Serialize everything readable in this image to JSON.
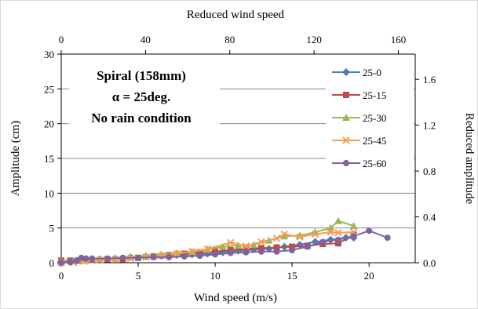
{
  "chart_data": {
    "type": "line",
    "xlabel": "Wind speed (m/s)",
    "ylabel": "Amplitude (cm)",
    "x2label": "Reduced wind speed",
    "y2label": "Reduced amplitude",
    "xlim": [
      0,
      23
    ],
    "ylim": [
      0,
      30
    ],
    "x2lim": [
      0,
      168
    ],
    "y2lim": [
      0,
      1.82
    ],
    "xticks": [
      "0",
      "5",
      "10",
      "15",
      "20"
    ],
    "yticks": [
      "0",
      "5",
      "10",
      "15",
      "20",
      "25",
      "30"
    ],
    "x2ticks": [
      "0",
      "40",
      "80",
      "120",
      "160"
    ],
    "y2ticks": [
      "0.0",
      "0.4",
      "0.8",
      "1.2",
      "1.6"
    ],
    "annotations": [
      "Spiral (158mm)",
      "α = 25deg.",
      "No rain condition"
    ],
    "grid": "horizontal",
    "legend": "right",
    "series": [
      {
        "name": "25-0",
        "color": "#4a7ebb",
        "marker": "diamond",
        "x": [
          0,
          0.5,
          1.0,
          1.5,
          2.5,
          3.5,
          4.5,
          5.5,
          6.5,
          7.5,
          8.5,
          9.5,
          10.5,
          11.5,
          12.5,
          13.5,
          14.5,
          15.5,
          16.5,
          17.5,
          18.5,
          19.0
        ],
        "y": [
          0.2,
          0.2,
          0.3,
          0.4,
          0.5,
          0.6,
          0.8,
          0.9,
          1.0,
          1.1,
          1.2,
          1.3,
          1.5,
          1.7,
          1.9,
          2.0,
          2.3,
          2.6,
          3.0,
          3.3,
          3.6,
          3.6
        ]
      },
      {
        "name": "25-15",
        "color": "#be4b48",
        "marker": "square",
        "x": [
          0,
          0.6,
          1.2,
          2.0,
          3.0,
          4.0,
          5.0,
          6.0,
          7.0,
          8.0,
          9.0,
          10.0,
          11.0,
          12.0,
          13.0,
          14.0,
          15.0,
          16.0,
          17.0,
          18.0,
          19.0
        ],
        "y": [
          0.3,
          0.3,
          0.3,
          0.4,
          0.5,
          0.5,
          0.7,
          0.9,
          1.1,
          1.3,
          1.5,
          1.6,
          1.8,
          2.0,
          2.1,
          2.2,
          2.3,
          2.4,
          2.7,
          2.8,
          4.0
        ]
      },
      {
        "name": "25-30",
        "color": "#98b954",
        "marker": "triangle",
        "x": [
          0,
          0.8,
          1.5,
          2.5,
          3.5,
          4.5,
          5.5,
          6.5,
          7.5,
          8.5,
          9.5,
          10.5,
          11.5,
          12.5,
          13.5,
          14.5,
          15.5,
          16.5,
          17.5,
          18.0,
          19.0
        ],
        "y": [
          0.2,
          0.3,
          0.4,
          0.5,
          0.6,
          0.8,
          1.0,
          1.2,
          1.4,
          1.6,
          1.9,
          2.3,
          2.5,
          2.6,
          3.2,
          3.8,
          3.9,
          4.4,
          5.0,
          6.0,
          5.3
        ]
      },
      {
        "name": "25-45",
        "color": "#f59d56",
        "marker": "x",
        "x": [
          0,
          0.8,
          1.5,
          2.5,
          3.5,
          4.5,
          5.5,
          6.5,
          7.5,
          8.5,
          9.5,
          11.0,
          12.0,
          13.0,
          14.0,
          14.5,
          15.5,
          16.5,
          17.5,
          18.0,
          19.0
        ],
        "y": [
          0.0,
          0.0,
          0.2,
          0.4,
          0.5,
          0.6,
          0.8,
          1.0,
          1.3,
          1.6,
          2.0,
          2.9,
          2.4,
          3.0,
          3.5,
          4.1,
          3.7,
          4.1,
          4.4,
          4.3,
          4.4
        ]
      },
      {
        "name": "25-60",
        "color": "#7e649e",
        "marker": "circle",
        "x": [
          0,
          0.6,
          1.0,
          1.3,
          1.6,
          2.0,
          3.0,
          4.0,
          5.0,
          6.0,
          7.0,
          8.0,
          9.0,
          10.0,
          11.0,
          12.0,
          13.0,
          14.0,
          15.0,
          16.0,
          17.0,
          18.0,
          19.0,
          20.0,
          21.2
        ],
        "y": [
          0.0,
          0.1,
          0.3,
          0.7,
          0.6,
          0.6,
          0.6,
          0.7,
          0.7,
          0.8,
          0.8,
          0.9,
          1.0,
          1.2,
          1.4,
          1.5,
          1.6,
          1.6,
          1.8,
          2.3,
          3.0,
          3.3,
          3.8,
          4.6,
          3.6
        ]
      }
    ]
  }
}
